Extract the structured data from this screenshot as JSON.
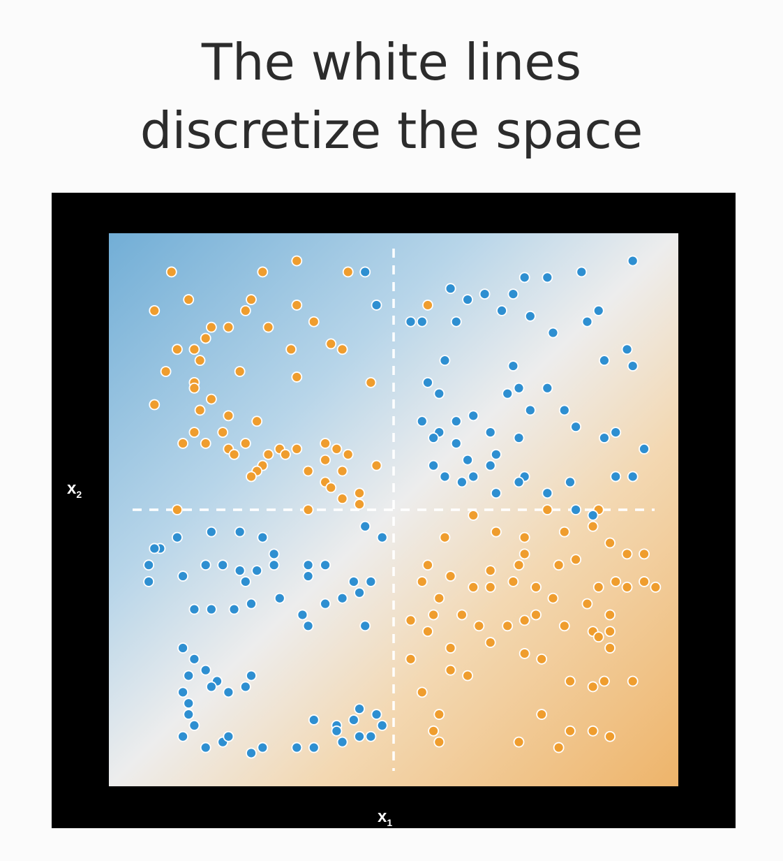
{
  "title_lines": [
    "The white lines",
    "discretize the space"
  ],
  "colors": {
    "frame": "#000000",
    "blue_region": "#72aed6",
    "orange_region": "#eeb46a",
    "blue_point": "#2e8fd1",
    "orange_point": "#ef9d2e",
    "divider": "#ffffff"
  },
  "chart_data": {
    "type": "scatter",
    "title": "The white lines discretize the space",
    "xlabel": "x",
    "xlabel_sub": "1",
    "ylabel": "x",
    "ylabel_sub": "2",
    "xlim": [
      0,
      1
    ],
    "ylim": [
      0,
      1
    ],
    "grid": false,
    "dividers": {
      "x": 0.5,
      "y": 0.5,
      "style": "dashed"
    },
    "series": [
      {
        "color": "orange",
        "points": [
          [
            0.11,
            0.93
          ],
          [
            0.27,
            0.93
          ],
          [
            0.33,
            0.95
          ],
          [
            0.42,
            0.93
          ],
          [
            0.14,
            0.88
          ],
          [
            0.08,
            0.86
          ],
          [
            0.25,
            0.88
          ],
          [
            0.33,
            0.87
          ],
          [
            0.24,
            0.86
          ],
          [
            0.36,
            0.84
          ],
          [
            0.18,
            0.83
          ],
          [
            0.21,
            0.83
          ],
          [
            0.28,
            0.83
          ],
          [
            0.17,
            0.81
          ],
          [
            0.12,
            0.79
          ],
          [
            0.15,
            0.79
          ],
          [
            0.32,
            0.79
          ],
          [
            0.39,
            0.8
          ],
          [
            0.41,
            0.79
          ],
          [
            0.16,
            0.77
          ],
          [
            0.1,
            0.75
          ],
          [
            0.15,
            0.73
          ],
          [
            0.23,
            0.75
          ],
          [
            0.33,
            0.74
          ],
          [
            0.46,
            0.73
          ],
          [
            0.15,
            0.72
          ],
          [
            0.18,
            0.7
          ],
          [
            0.08,
            0.69
          ],
          [
            0.16,
            0.68
          ],
          [
            0.26,
            0.66
          ],
          [
            0.15,
            0.64
          ],
          [
            0.21,
            0.67
          ],
          [
            0.2,
            0.64
          ],
          [
            0.13,
            0.62
          ],
          [
            0.17,
            0.62
          ],
          [
            0.21,
            0.61
          ],
          [
            0.24,
            0.62
          ],
          [
            0.22,
            0.6
          ],
          [
            0.3,
            0.61
          ],
          [
            0.33,
            0.61
          ],
          [
            0.38,
            0.62
          ],
          [
            0.4,
            0.61
          ],
          [
            0.28,
            0.6
          ],
          [
            0.31,
            0.6
          ],
          [
            0.27,
            0.58
          ],
          [
            0.26,
            0.57
          ],
          [
            0.42,
            0.6
          ],
          [
            0.38,
            0.59
          ],
          [
            0.35,
            0.57
          ],
          [
            0.41,
            0.57
          ],
          [
            0.47,
            0.58
          ],
          [
            0.38,
            0.55
          ],
          [
            0.39,
            0.54
          ],
          [
            0.44,
            0.53
          ],
          [
            0.41,
            0.52
          ],
          [
            0.44,
            0.51
          ],
          [
            0.12,
            0.5
          ],
          [
            0.25,
            0.56
          ],
          [
            0.35,
            0.5
          ],
          [
            0.56,
            0.87
          ],
          [
            0.59,
            0.45
          ],
          [
            0.56,
            0.4
          ],
          [
            0.55,
            0.37
          ],
          [
            0.58,
            0.34
          ],
          [
            0.57,
            0.31
          ],
          [
            0.53,
            0.3
          ],
          [
            0.6,
            0.38
          ],
          [
            0.64,
            0.36
          ],
          [
            0.67,
            0.36
          ],
          [
            0.71,
            0.37
          ],
          [
            0.75,
            0.36
          ],
          [
            0.78,
            0.34
          ],
          [
            0.86,
            0.36
          ],
          [
            0.91,
            0.36
          ],
          [
            0.94,
            0.37
          ],
          [
            0.96,
            0.36
          ],
          [
            0.94,
            0.42
          ],
          [
            0.91,
            0.42
          ],
          [
            0.88,
            0.44
          ],
          [
            0.85,
            0.47
          ],
          [
            0.88,
            0.31
          ],
          [
            0.85,
            0.28
          ],
          [
            0.73,
            0.3
          ],
          [
            0.62,
            0.31
          ],
          [
            0.56,
            0.28
          ],
          [
            0.6,
            0.25
          ],
          [
            0.65,
            0.29
          ],
          [
            0.67,
            0.26
          ],
          [
            0.7,
            0.29
          ],
          [
            0.75,
            0.31
          ],
          [
            0.84,
            0.33
          ],
          [
            0.8,
            0.29
          ],
          [
            0.88,
            0.25
          ],
          [
            0.86,
            0.27
          ],
          [
            0.88,
            0.28
          ],
          [
            0.76,
            0.23
          ],
          [
            0.73,
            0.24
          ],
          [
            0.81,
            0.19
          ],
          [
            0.87,
            0.19
          ],
          [
            0.92,
            0.19
          ],
          [
            0.85,
            0.18
          ],
          [
            0.76,
            0.13
          ],
          [
            0.81,
            0.1
          ],
          [
            0.85,
            0.1
          ],
          [
            0.88,
            0.09
          ],
          [
            0.79,
            0.07
          ],
          [
            0.72,
            0.08
          ],
          [
            0.63,
            0.2
          ],
          [
            0.6,
            0.21
          ],
          [
            0.58,
            0.13
          ],
          [
            0.57,
            0.1
          ],
          [
            0.58,
            0.08
          ],
          [
            0.55,
            0.17
          ],
          [
            0.53,
            0.23
          ],
          [
            0.64,
            0.49
          ],
          [
            0.67,
            0.39
          ],
          [
            0.73,
            0.42
          ],
          [
            0.8,
            0.46
          ],
          [
            0.82,
            0.41
          ],
          [
            0.68,
            0.46
          ],
          [
            0.73,
            0.45
          ],
          [
            0.79,
            0.4
          ],
          [
            0.89,
            0.37
          ],
          [
            0.86,
            0.5
          ],
          [
            0.77,
            0.5
          ],
          [
            0.72,
            0.4
          ]
        ]
      },
      {
        "color": "blue",
        "points": [
          [
            0.45,
            0.93
          ],
          [
            0.47,
            0.87
          ],
          [
            0.53,
            0.84
          ],
          [
            0.55,
            0.84
          ],
          [
            0.6,
            0.9
          ],
          [
            0.63,
            0.88
          ],
          [
            0.66,
            0.89
          ],
          [
            0.71,
            0.89
          ],
          [
            0.73,
            0.92
          ],
          [
            0.77,
            0.92
          ],
          [
            0.83,
            0.93
          ],
          [
            0.92,
            0.95
          ],
          [
            0.86,
            0.86
          ],
          [
            0.84,
            0.84
          ],
          [
            0.74,
            0.85
          ],
          [
            0.78,
            0.82
          ],
          [
            0.61,
            0.84
          ],
          [
            0.69,
            0.86
          ],
          [
            0.59,
            0.77
          ],
          [
            0.71,
            0.76
          ],
          [
            0.77,
            0.72
          ],
          [
            0.72,
            0.72
          ],
          [
            0.91,
            0.79
          ],
          [
            0.92,
            0.76
          ],
          [
            0.87,
            0.77
          ],
          [
            0.56,
            0.73
          ],
          [
            0.58,
            0.71
          ],
          [
            0.61,
            0.66
          ],
          [
            0.64,
            0.67
          ],
          [
            0.67,
            0.64
          ],
          [
            0.72,
            0.63
          ],
          [
            0.74,
            0.68
          ],
          [
            0.8,
            0.68
          ],
          [
            0.82,
            0.65
          ],
          [
            0.87,
            0.63
          ],
          [
            0.89,
            0.64
          ],
          [
            0.94,
            0.61
          ],
          [
            0.58,
            0.64
          ],
          [
            0.61,
            0.62
          ],
          [
            0.63,
            0.59
          ],
          [
            0.67,
            0.58
          ],
          [
            0.68,
            0.6
          ],
          [
            0.73,
            0.56
          ],
          [
            0.81,
            0.55
          ],
          [
            0.89,
            0.56
          ],
          [
            0.92,
            0.56
          ],
          [
            0.57,
            0.58
          ],
          [
            0.59,
            0.56
          ],
          [
            0.62,
            0.55
          ],
          [
            0.64,
            0.56
          ],
          [
            0.68,
            0.53
          ],
          [
            0.72,
            0.55
          ],
          [
            0.77,
            0.53
          ],
          [
            0.82,
            0.5
          ],
          [
            0.85,
            0.49
          ],
          [
            0.55,
            0.66
          ],
          [
            0.57,
            0.63
          ],
          [
            0.7,
            0.71
          ],
          [
            0.77,
            0.72
          ],
          [
            0.45,
            0.47
          ],
          [
            0.09,
            0.43
          ],
          [
            0.12,
            0.45
          ],
          [
            0.18,
            0.46
          ],
          [
            0.23,
            0.46
          ],
          [
            0.07,
            0.4
          ],
          [
            0.07,
            0.37
          ],
          [
            0.13,
            0.38
          ],
          [
            0.2,
            0.4
          ],
          [
            0.23,
            0.39
          ],
          [
            0.26,
            0.39
          ],
          [
            0.29,
            0.42
          ],
          [
            0.29,
            0.4
          ],
          [
            0.35,
            0.38
          ],
          [
            0.38,
            0.4
          ],
          [
            0.43,
            0.37
          ],
          [
            0.46,
            0.37
          ],
          [
            0.44,
            0.35
          ],
          [
            0.41,
            0.34
          ],
          [
            0.24,
            0.37
          ],
          [
            0.25,
            0.33
          ],
          [
            0.18,
            0.32
          ],
          [
            0.22,
            0.32
          ],
          [
            0.35,
            0.29
          ],
          [
            0.45,
            0.29
          ],
          [
            0.15,
            0.32
          ],
          [
            0.13,
            0.25
          ],
          [
            0.15,
            0.23
          ],
          [
            0.14,
            0.2
          ],
          [
            0.17,
            0.21
          ],
          [
            0.19,
            0.19
          ],
          [
            0.21,
            0.17
          ],
          [
            0.24,
            0.18
          ],
          [
            0.25,
            0.2
          ],
          [
            0.18,
            0.18
          ],
          [
            0.13,
            0.17
          ],
          [
            0.14,
            0.15
          ],
          [
            0.14,
            0.13
          ],
          [
            0.15,
            0.11
          ],
          [
            0.13,
            0.09
          ],
          [
            0.17,
            0.07
          ],
          [
            0.2,
            0.08
          ],
          [
            0.21,
            0.09
          ],
          [
            0.25,
            0.06
          ],
          [
            0.27,
            0.07
          ],
          [
            0.33,
            0.07
          ],
          [
            0.36,
            0.07
          ],
          [
            0.36,
            0.12
          ],
          [
            0.4,
            0.11
          ],
          [
            0.44,
            0.14
          ],
          [
            0.47,
            0.13
          ],
          [
            0.48,
            0.11
          ],
          [
            0.4,
            0.1
          ],
          [
            0.41,
            0.08
          ],
          [
            0.44,
            0.09
          ],
          [
            0.46,
            0.09
          ],
          [
            0.43,
            0.12
          ],
          [
            0.08,
            0.43
          ],
          [
            0.35,
            0.4
          ],
          [
            0.48,
            0.45
          ],
          [
            0.27,
            0.45
          ],
          [
            0.17,
            0.4
          ],
          [
            0.34,
            0.31
          ],
          [
            0.3,
            0.34
          ],
          [
            0.38,
            0.33
          ]
        ]
      }
    ]
  }
}
